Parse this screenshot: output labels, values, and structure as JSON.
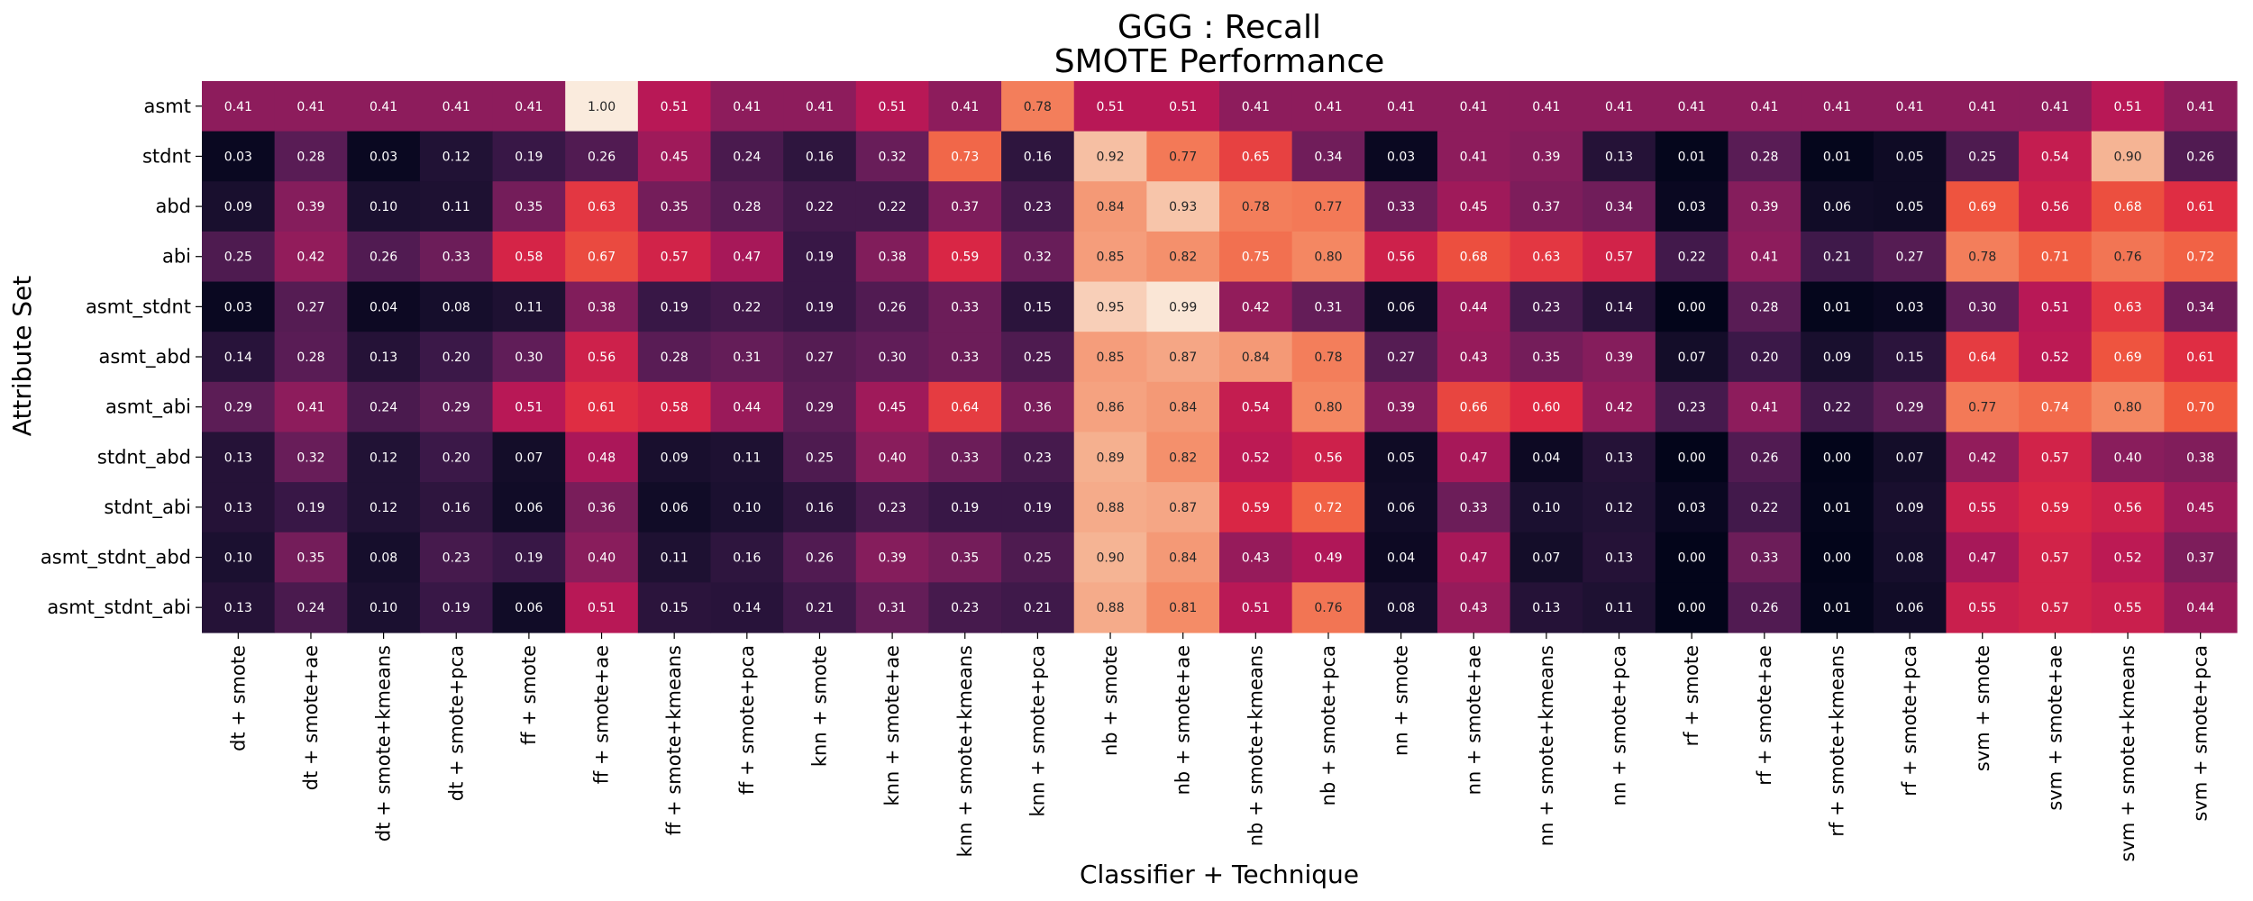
{
  "chart_data": {
    "type": "heatmap",
    "title": "GGG : Recall",
    "subtitle": "SMOTE Performance",
    "xlabel": "Classifier + Technique",
    "ylabel": "Attribute Set",
    "x_categories": [
      "dt + smote",
      "dt + smote+ae",
      "dt + smote+kmeans",
      "dt + smote+pca",
      "ff + smote",
      "ff + smote+ae",
      "ff + smote+kmeans",
      "ff + smote+pca",
      "knn + smote",
      "knn + smote+ae",
      "knn + smote+kmeans",
      "knn + smote+pca",
      "nb + smote",
      "nb + smote+ae",
      "nb + smote+kmeans",
      "nb + smote+pca",
      "nn + smote",
      "nn + smote+ae",
      "nn + smote+kmeans",
      "nn + smote+pca",
      "rf + smote",
      "rf + smote+ae",
      "rf + smote+kmeans",
      "rf + smote+pca",
      "svm + smote",
      "svm + smote+ae",
      "svm + smote+kmeans",
      "svm + smote+pca"
    ],
    "y_categories": [
      "asmt",
      "stdnt",
      "abd",
      "abi",
      "asmt_stdnt",
      "asmt_abd",
      "asmt_abi",
      "stdnt_abd",
      "stdnt_abi",
      "asmt_stdnt_abd",
      "asmt_stdnt_abi"
    ],
    "values": [
      [
        0.41,
        0.41,
        0.41,
        0.41,
        0.41,
        1.0,
        0.51,
        0.41,
        0.41,
        0.51,
        0.41,
        0.78,
        0.51,
        0.51,
        0.41,
        0.41,
        0.41,
        0.41,
        0.41,
        0.41,
        0.41,
        0.41,
        0.41,
        0.41,
        0.41,
        0.41,
        0.51,
        0.41
      ],
      [
        0.03,
        0.28,
        0.03,
        0.12,
        0.19,
        0.26,
        0.45,
        0.24,
        0.16,
        0.32,
        0.73,
        0.16,
        0.92,
        0.77,
        0.65,
        0.34,
        0.03,
        0.41,
        0.39,
        0.13,
        0.01,
        0.28,
        0.01,
        0.05,
        0.25,
        0.54,
        0.9,
        0.26
      ],
      [
        0.09,
        0.39,
        0.1,
        0.11,
        0.35,
        0.63,
        0.35,
        0.28,
        0.22,
        0.22,
        0.37,
        0.23,
        0.84,
        0.93,
        0.78,
        0.77,
        0.33,
        0.45,
        0.37,
        0.34,
        0.03,
        0.39,
        0.06,
        0.05,
        0.69,
        0.56,
        0.68,
        0.61
      ],
      [
        0.25,
        0.42,
        0.26,
        0.33,
        0.58,
        0.67,
        0.57,
        0.47,
        0.19,
        0.38,
        0.59,
        0.32,
        0.85,
        0.82,
        0.75,
        0.8,
        0.56,
        0.68,
        0.63,
        0.57,
        0.22,
        0.41,
        0.21,
        0.27,
        0.78,
        0.71,
        0.76,
        0.72
      ],
      [
        0.03,
        0.27,
        0.04,
        0.08,
        0.11,
        0.38,
        0.19,
        0.22,
        0.19,
        0.26,
        0.33,
        0.15,
        0.95,
        0.99,
        0.42,
        0.31,
        0.06,
        0.44,
        0.23,
        0.14,
        0.0,
        0.28,
        0.01,
        0.03,
        0.3,
        0.51,
        0.63,
        0.34
      ],
      [
        0.14,
        0.28,
        0.13,
        0.2,
        0.3,
        0.56,
        0.28,
        0.31,
        0.27,
        0.3,
        0.33,
        0.25,
        0.85,
        0.87,
        0.84,
        0.78,
        0.27,
        0.43,
        0.35,
        0.39,
        0.07,
        0.2,
        0.09,
        0.15,
        0.64,
        0.52,
        0.69,
        0.61
      ],
      [
        0.29,
        0.41,
        0.24,
        0.29,
        0.51,
        0.61,
        0.58,
        0.44,
        0.29,
        0.45,
        0.64,
        0.36,
        0.86,
        0.84,
        0.54,
        0.8,
        0.39,
        0.66,
        0.6,
        0.42,
        0.23,
        0.41,
        0.22,
        0.29,
        0.77,
        0.74,
        0.8,
        0.7
      ],
      [
        0.13,
        0.32,
        0.12,
        0.2,
        0.07,
        0.48,
        0.09,
        0.11,
        0.25,
        0.4,
        0.33,
        0.23,
        0.89,
        0.82,
        0.52,
        0.56,
        0.05,
        0.47,
        0.04,
        0.13,
        0.0,
        0.26,
        0.0,
        0.07,
        0.42,
        0.57,
        0.4,
        0.38
      ],
      [
        0.13,
        0.19,
        0.12,
        0.16,
        0.06,
        0.36,
        0.06,
        0.1,
        0.16,
        0.23,
        0.19,
        0.19,
        0.88,
        0.87,
        0.59,
        0.72,
        0.06,
        0.33,
        0.1,
        0.12,
        0.03,
        0.22,
        0.01,
        0.09,
        0.55,
        0.59,
        0.56,
        0.45
      ],
      [
        0.1,
        0.35,
        0.08,
        0.23,
        0.19,
        0.4,
        0.11,
        0.16,
        0.26,
        0.39,
        0.35,
        0.25,
        0.9,
        0.84,
        0.43,
        0.49,
        0.04,
        0.47,
        0.07,
        0.13,
        0.0,
        0.33,
        0.0,
        0.08,
        0.47,
        0.57,
        0.52,
        0.37
      ],
      [
        0.13,
        0.24,
        0.1,
        0.19,
        0.06,
        0.51,
        0.15,
        0.14,
        0.21,
        0.31,
        0.23,
        0.21,
        0.88,
        0.81,
        0.51,
        0.76,
        0.08,
        0.43,
        0.13,
        0.11,
        0.0,
        0.26,
        0.01,
        0.06,
        0.55,
        0.57,
        0.55,
        0.44
      ]
    ],
    "value_range": [
      0,
      1
    ],
    "colormap": "rocket",
    "grid": false,
    "legend": "none"
  }
}
